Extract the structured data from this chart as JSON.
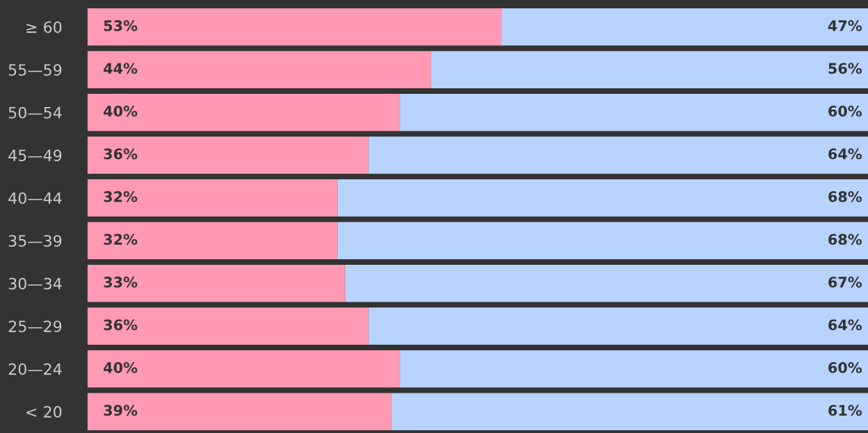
{
  "chart_data": {
    "type": "bar",
    "orientation": "horizontal",
    "stacked": true,
    "tick_labels": "y",
    "categories": [
      "≥ 60",
      "55—59",
      "50—54",
      "45—49",
      "40—44",
      "35—39",
      "30—34",
      "25—29",
      "20—24",
      "< 20"
    ],
    "series": [
      {
        "color": "#ff99b4",
        "values": [
          53,
          44,
          40,
          36,
          32,
          32,
          33,
          36,
          40,
          39
        ],
        "value_labels": [
          "53%",
          "44%",
          "40%",
          "36%",
          "32%",
          "32%",
          "33%",
          "36%",
          "40%",
          "39%"
        ]
      },
      {
        "color": "#b9d3ff",
        "values": [
          47,
          56,
          60,
          64,
          68,
          68,
          67,
          64,
          60,
          61
        ],
        "value_labels": [
          "47%",
          "56%",
          "60%",
          "64%",
          "68%",
          "68%",
          "67%",
          "64%",
          "60%",
          "61%"
        ]
      }
    ]
  }
}
